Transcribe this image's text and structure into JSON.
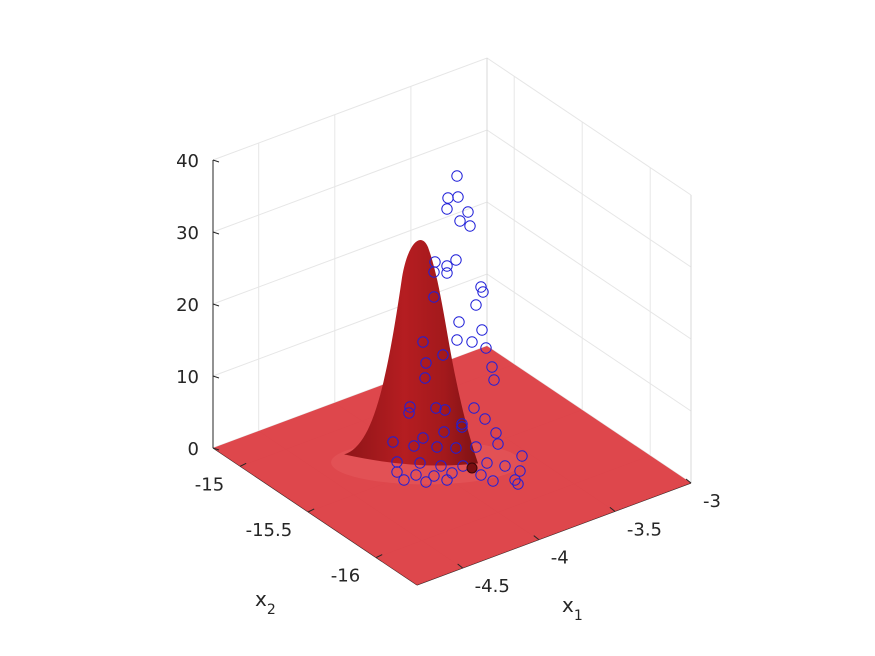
{
  "chart_data": {
    "type": "surface3d",
    "xlabel": "x",
    "xlabel_sub": "1",
    "ylabel": "x",
    "ylabel_sub": "2",
    "zlabel": "",
    "xlim": [
      -4.8,
      -3
    ],
    "ylim": [
      -16.3,
      -14.8
    ],
    "zlim": [
      0,
      40
    ],
    "x_ticks": [
      -4.5,
      -4,
      -3.5,
      -3
    ],
    "x_tick_labels": [
      "-4.5",
      "-4",
      "-3.5",
      "-3"
    ],
    "y_ticks": [
      -15,
      -15.5,
      -16
    ],
    "y_tick_labels": [
      "-15",
      "-15.5",
      "-16"
    ],
    "z_ticks": [
      0,
      10,
      20,
      30,
      40
    ],
    "z_tick_labels": [
      "0",
      "10",
      "20",
      "30",
      "40"
    ],
    "grid": true,
    "surface": {
      "color": "#c8252a",
      "peak": {
        "x": -4.02,
        "y": -15.42,
        "z": 31
      },
      "description_values": {
        "base_z": 0
      }
    },
    "scatter": {
      "marker": "circle-open",
      "color": "#1f1fd8",
      "approx_z_values": [
        38,
        35,
        35,
        34,
        33,
        31,
        27,
        26,
        25,
        22,
        22,
        21,
        17,
        16,
        15,
        15,
        14,
        13,
        12,
        10,
        9,
        8,
        7,
        6,
        6,
        5,
        4,
        3,
        3,
        2,
        1,
        0,
        0,
        0,
        0,
        0
      ]
    },
    "highlight_point": {
      "x": -4.02,
      "y": -15.42,
      "z": 0,
      "color": "#7a0f12"
    }
  }
}
